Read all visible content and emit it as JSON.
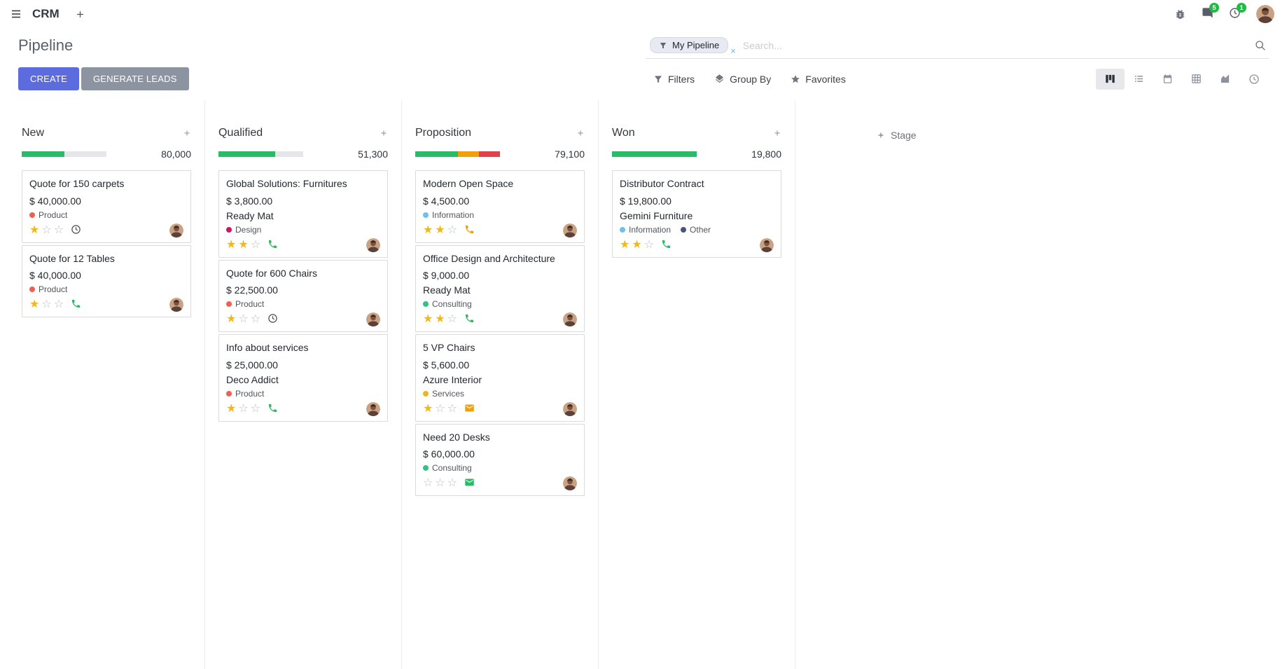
{
  "navbar": {
    "app_name": "CRM",
    "messages_badge": "5",
    "activities_badge": "1"
  },
  "control_panel": {
    "title": "Pipeline",
    "search": {
      "facet_label": "My Pipeline",
      "facet_remove": "×",
      "placeholder": "Search..."
    },
    "buttons": {
      "create": "CREATE",
      "generate_leads": "GENERATE LEADS"
    },
    "menus": {
      "filters": "Filters",
      "group_by": "Group By",
      "favorites": "Favorites"
    },
    "view_switcher": [
      "kanban",
      "list",
      "calendar",
      "pivot",
      "graph",
      "activity"
    ]
  },
  "board": {
    "add_stage_label": "Stage",
    "columns": [
      {
        "name": "New",
        "counter": "80,000",
        "progress": [
          {
            "color": "success",
            "pct": 50
          },
          {
            "color": "muted",
            "pct": 50
          }
        ],
        "cards": [
          {
            "title": "Quote for 150 carpets",
            "amount": "$ 40,000.00",
            "partner": null,
            "tags": [
              {
                "label": "Product",
                "color": "#f06050"
              }
            ],
            "stars": 1,
            "activity": {
              "icon": "clock-icon",
              "color": "dark"
            }
          },
          {
            "title": "Quote for 12 Tables",
            "amount": "$ 40,000.00",
            "partner": null,
            "tags": [
              {
                "label": "Product",
                "color": "#f06050"
              }
            ],
            "stars": 1,
            "activity": {
              "icon": "phone-icon",
              "color": "success"
            }
          }
        ]
      },
      {
        "name": "Qualified",
        "counter": "51,300",
        "progress": [
          {
            "color": "success",
            "pct": 66.7
          },
          {
            "color": "muted",
            "pct": 33.3
          }
        ],
        "cards": [
          {
            "title": "Global Solutions: Furnitures",
            "amount": "$ 3,800.00",
            "partner": "Ready Mat",
            "tags": [
              {
                "label": "Design",
                "color": "#d6145f"
              }
            ],
            "stars": 2,
            "activity": {
              "icon": "phone-icon",
              "color": "success"
            }
          },
          {
            "title": "Quote for 600 Chairs",
            "amount": "$ 22,500.00",
            "partner": null,
            "tags": [
              {
                "label": "Product",
                "color": "#f06050"
              }
            ],
            "stars": 1,
            "activity": {
              "icon": "clock-icon",
              "color": "dark"
            }
          },
          {
            "title": "Info about services",
            "amount": "$ 25,000.00",
            "partner": "Deco Addict",
            "tags": [
              {
                "label": "Product",
                "color": "#f06050"
              }
            ],
            "stars": 1,
            "activity": {
              "icon": "phone-icon",
              "color": "success"
            }
          }
        ]
      },
      {
        "name": "Proposition",
        "counter": "79,100",
        "progress": [
          {
            "color": "success",
            "pct": 50
          },
          {
            "color": "warning",
            "pct": 25
          },
          {
            "color": "danger",
            "pct": 25
          }
        ],
        "cards": [
          {
            "title": "Modern Open Space",
            "amount": "$ 4,500.00",
            "partner": null,
            "tags": [
              {
                "label": "Information",
                "color": "#6cc1ed"
              }
            ],
            "stars": 2,
            "activity": {
              "icon": "phone-icon",
              "color": "warning"
            }
          },
          {
            "title": "Office Design and Architecture",
            "amount": "$ 9,000.00",
            "partner": "Ready Mat",
            "tags": [
              {
                "label": "Consulting",
                "color": "#30c381"
              }
            ],
            "stars": 2,
            "activity": {
              "icon": "phone-icon",
              "color": "success"
            }
          },
          {
            "title": "5 VP Chairs",
            "amount": "$ 5,600.00",
            "partner": "Azure Interior",
            "tags": [
              {
                "label": "Services",
                "color": "#ebb71f"
              }
            ],
            "stars": 1,
            "activity": {
              "icon": "envelope-icon",
              "color": "warning"
            }
          },
          {
            "title": "Need 20 Desks",
            "amount": "$ 60,000.00",
            "partner": null,
            "tags": [
              {
                "label": "Consulting",
                "color": "#30c381"
              }
            ],
            "stars": 0,
            "activity": {
              "icon": "envelope-icon",
              "color": "success"
            }
          }
        ]
      },
      {
        "name": "Won",
        "counter": "19,800",
        "progress": [
          {
            "color": "success",
            "pct": 100
          }
        ],
        "cards": [
          {
            "title": "Distributor Contract",
            "amount": "$ 19,800.00",
            "partner": "Gemini Furniture",
            "tags": [
              {
                "label": "Information",
                "color": "#6cc1ed"
              },
              {
                "label": "Other",
                "color": "#475577"
              }
            ],
            "stars": 2,
            "activity": {
              "icon": "phone-icon",
              "color": "success"
            }
          }
        ]
      }
    ]
  },
  "colors": {
    "accent": "#5c6bdd",
    "secondary_button": "#8c94a2",
    "success": "#2abb68",
    "warning": "#f1a009",
    "danger": "#e0424a",
    "muted": "#e4e6ea",
    "dark": "#495057",
    "star_filled": "#f2b816",
    "badge": "#21ba45"
  }
}
